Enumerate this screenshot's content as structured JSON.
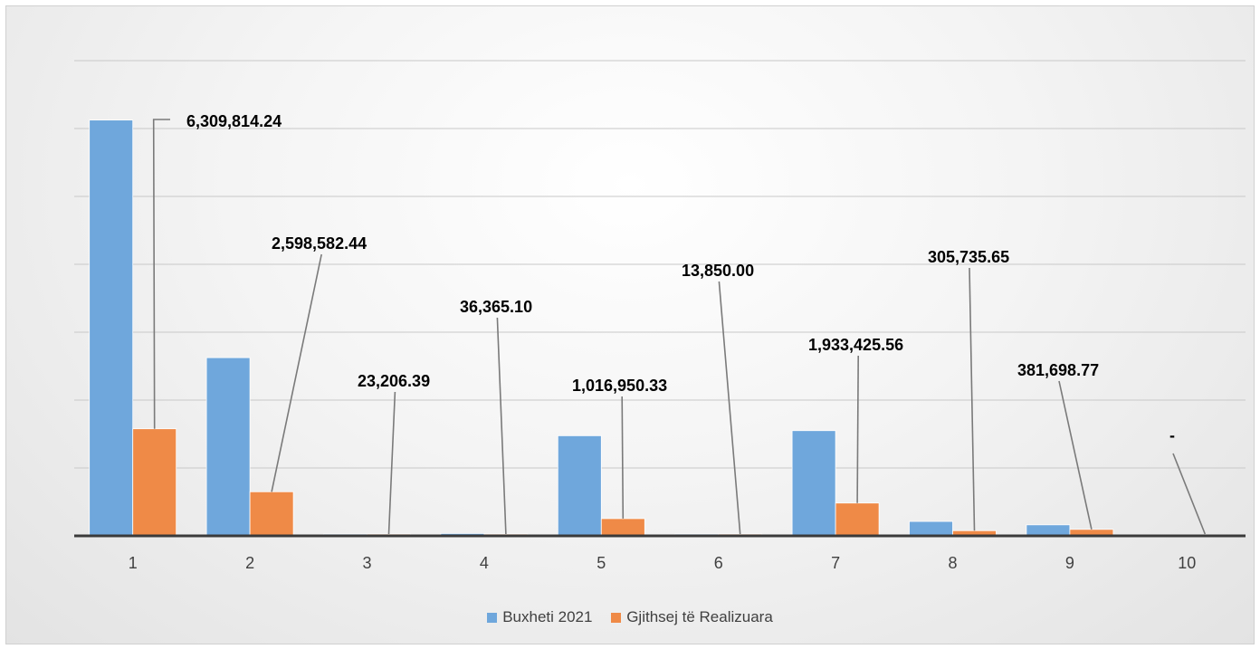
{
  "chart_data": {
    "type": "bar",
    "categories": [
      "1",
      "2",
      "3",
      "4",
      "5",
      "6",
      "7",
      "8",
      "9",
      "10"
    ],
    "series": [
      {
        "name": "Buxheti  2021",
        "color": "#6fa7dc",
        "values": [
          24500000,
          10500000,
          30000,
          140000,
          5900000,
          50000,
          6200000,
          850000,
          650000,
          0
        ]
      },
      {
        "name": "Gjithsej të Realizuara",
        "color": "#ef8a47",
        "values": [
          6309814.24,
          2598582.44,
          23206.39,
          36365.1,
          1016950.33,
          13850.0,
          1933425.56,
          305735.65,
          381698.77,
          0
        ]
      }
    ],
    "data_labels": [
      "6,309,814.24",
      "2,598,582.44",
      "23,206.39",
      "36,365.10",
      "1,016,950.33",
      "13,850.00",
      "1,933,425.56",
      "305,735.65",
      "381,698.77",
      "-"
    ],
    "ylim": [
      0,
      28000000
    ],
    "grid": true,
    "legend": "bottom"
  }
}
